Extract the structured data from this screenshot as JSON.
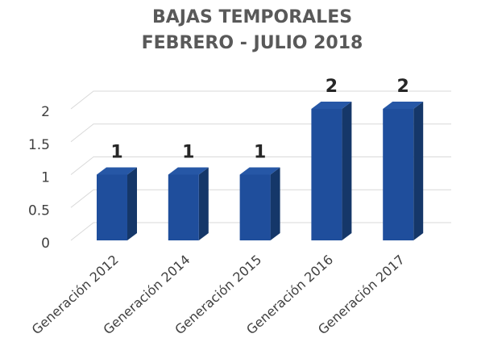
{
  "chart_data": {
    "type": "bar3d",
    "title": [
      "BAJAS TEMPORALES",
      "FEBRERO - JULIO 2018"
    ],
    "categories": [
      "Generación 2012",
      "Generación 2014",
      "Generación 2015",
      "Generación 2016",
      "Generación 2017"
    ],
    "values": [
      1,
      1,
      1,
      2,
      2
    ],
    "color": "#1f4e9c",
    "ylim": [
      0,
      2
    ],
    "yticks": [
      0,
      0.5,
      1,
      1.5,
      2
    ],
    "grid": true
  }
}
